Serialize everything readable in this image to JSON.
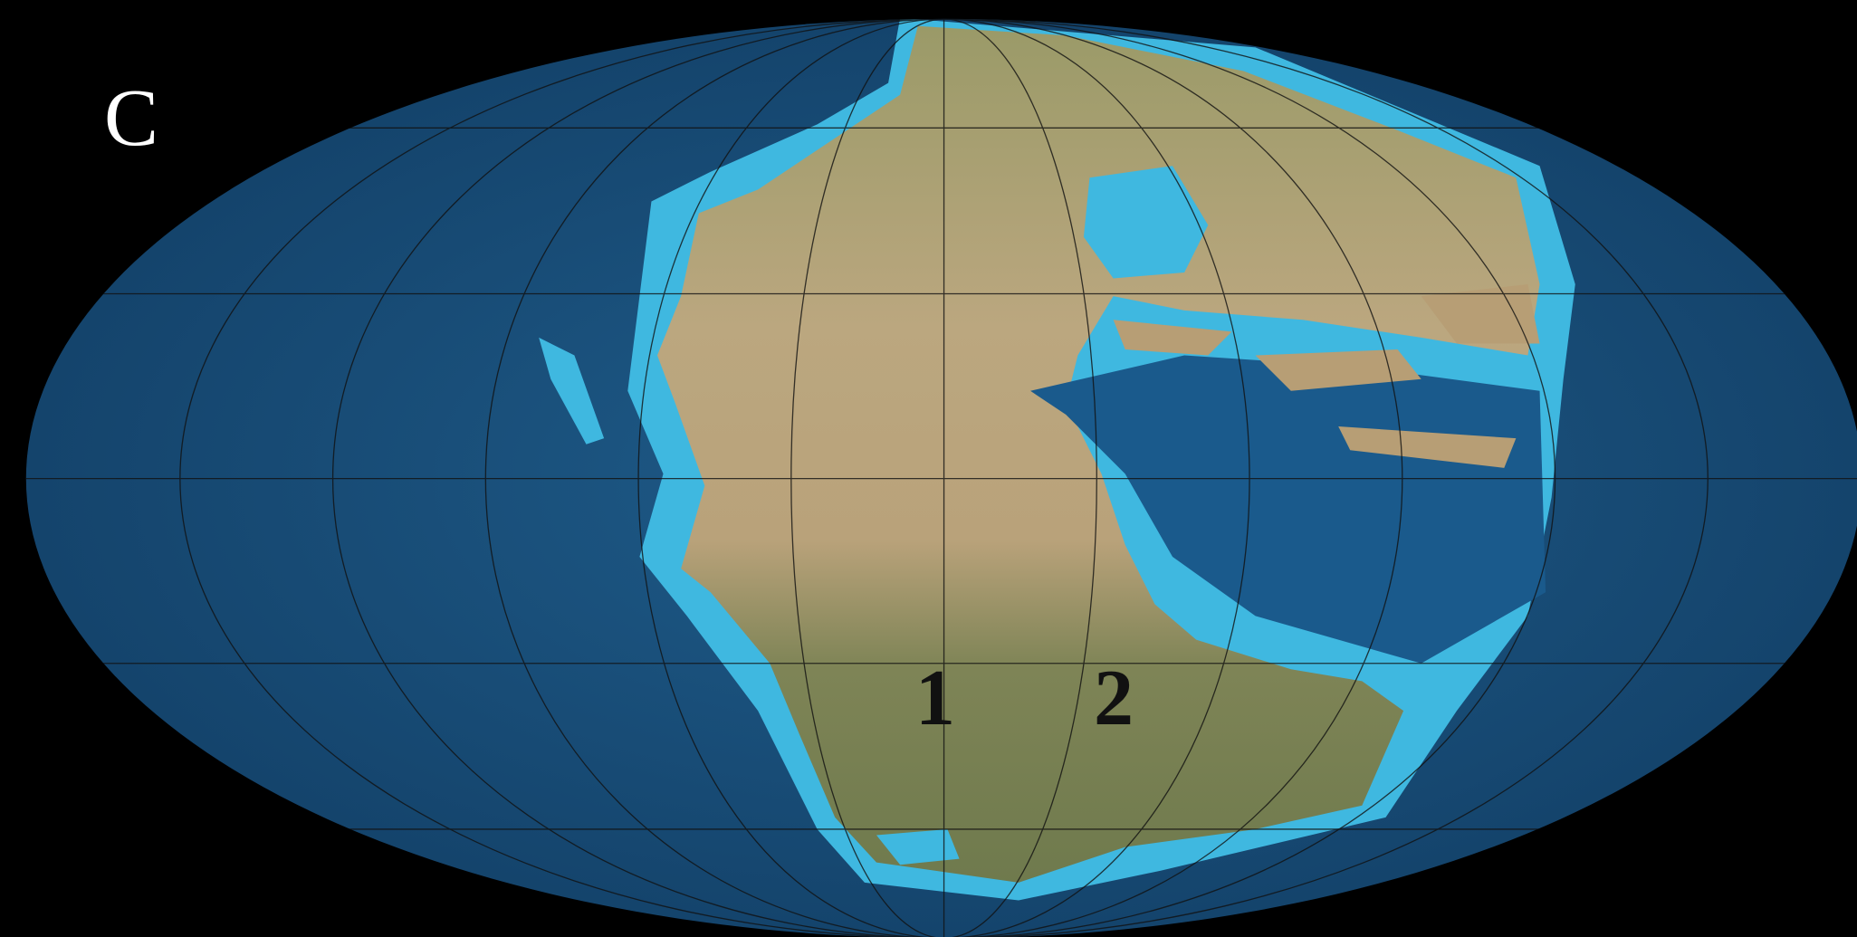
{
  "panel_label": "C",
  "markers": [
    {
      "label": "1"
    },
    {
      "label": "2"
    }
  ]
}
